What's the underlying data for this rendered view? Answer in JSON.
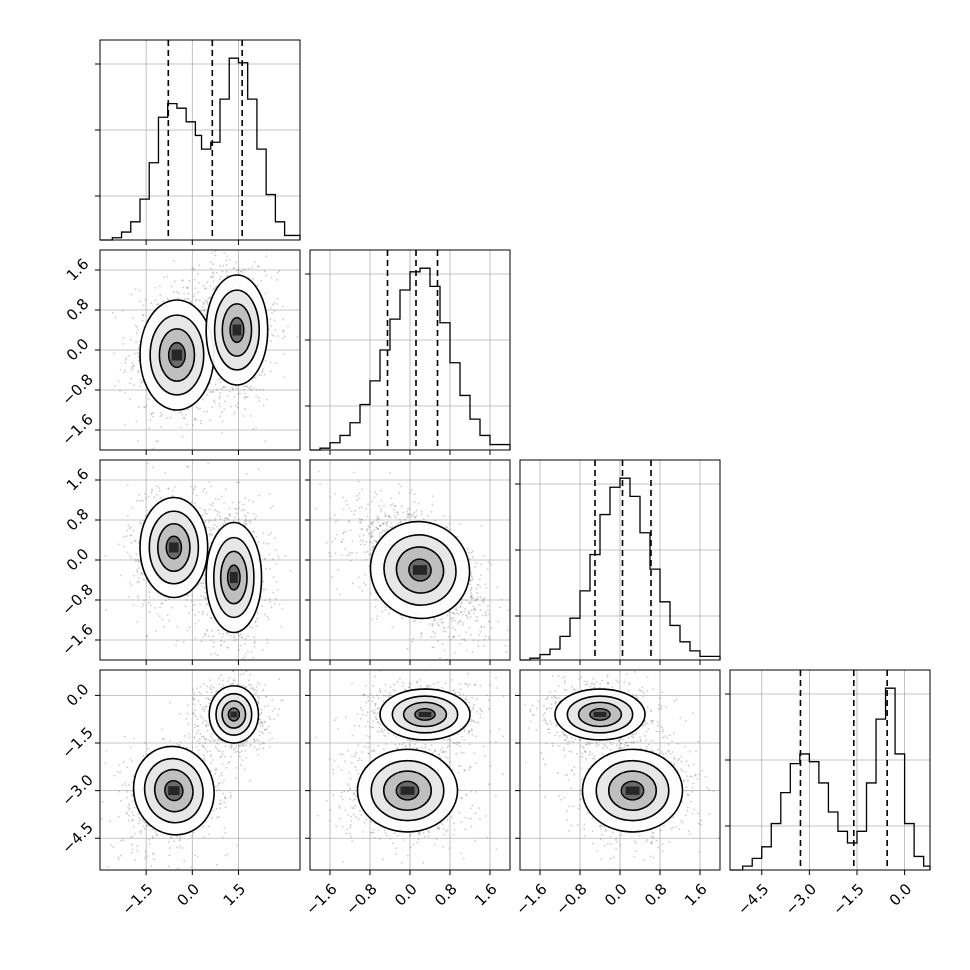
{
  "chart_data": {
    "type": "corner",
    "title": "",
    "grid": true,
    "axis_label_rotation_deg": 45,
    "colors": {
      "background": "#ffffff",
      "histogram": "#000000",
      "grid": "#b0b0b0",
      "scatter": "#6e6e6e",
      "contour": "#000000",
      "density_dark": "#262626"
    },
    "variables": [
      {
        "index": 0,
        "range": [
          -3.0,
          3.5
        ],
        "tick_labels": [
          "−1.5",
          "0.0",
          "1.5"
        ],
        "tick_values": [
          -1.5,
          0.0,
          1.5
        ],
        "quantiles": [
          -0.78,
          0.65,
          1.62
        ],
        "histogram": [
          {
            "x": -3.0,
            "y": 0.0
          },
          {
            "x": -2.6,
            "y": 0.01
          },
          {
            "x": -2.3,
            "y": 0.035
          },
          {
            "x": -2.0,
            "y": 0.08
          },
          {
            "x": -1.7,
            "y": 0.18
          },
          {
            "x": -1.4,
            "y": 0.34
          },
          {
            "x": -1.1,
            "y": 0.54
          },
          {
            "x": -0.8,
            "y": 0.6
          },
          {
            "x": -0.5,
            "y": 0.58
          },
          {
            "x": -0.2,
            "y": 0.52
          },
          {
            "x": 0.1,
            "y": 0.46
          },
          {
            "x": 0.3,
            "y": 0.4
          },
          {
            "x": 0.6,
            "y": 0.43
          },
          {
            "x": 0.9,
            "y": 0.62
          },
          {
            "x": 1.2,
            "y": 0.8
          },
          {
            "x": 1.5,
            "y": 0.78
          },
          {
            "x": 1.8,
            "y": 0.62
          },
          {
            "x": 2.1,
            "y": 0.4
          },
          {
            "x": 2.4,
            "y": 0.2
          },
          {
            "x": 2.7,
            "y": 0.08
          },
          {
            "x": 3.0,
            "y": 0.02
          },
          {
            "x": 3.5,
            "y": 0.0
          }
        ]
      },
      {
        "index": 1,
        "range": [
          -2.0,
          2.0
        ],
        "tick_labels": [
          "−1.6",
          "−0.8",
          "0.0",
          "0.8",
          "1.6"
        ],
        "tick_values": [
          -1.6,
          -0.8,
          0.0,
          0.8,
          1.6
        ],
        "quantiles": [
          -0.45,
          0.12,
          0.55
        ],
        "histogram": [
          {
            "x": -2.0,
            "y": 0.0
          },
          {
            "x": -1.8,
            "y": 0.01
          },
          {
            "x": -1.6,
            "y": 0.04
          },
          {
            "x": -1.4,
            "y": 0.08
          },
          {
            "x": -1.2,
            "y": 0.15
          },
          {
            "x": -1.0,
            "y": 0.25
          },
          {
            "x": -0.8,
            "y": 0.38
          },
          {
            "x": -0.6,
            "y": 0.55
          },
          {
            "x": -0.4,
            "y": 0.72
          },
          {
            "x": -0.2,
            "y": 0.88
          },
          {
            "x": 0.0,
            "y": 0.98
          },
          {
            "x": 0.2,
            "y": 1.0
          },
          {
            "x": 0.4,
            "y": 0.9
          },
          {
            "x": 0.6,
            "y": 0.7
          },
          {
            "x": 0.8,
            "y": 0.48
          },
          {
            "x": 1.0,
            "y": 0.3
          },
          {
            "x": 1.2,
            "y": 0.17
          },
          {
            "x": 1.4,
            "y": 0.08
          },
          {
            "x": 1.6,
            "y": 0.03
          },
          {
            "x": 2.0,
            "y": 0.0
          }
        ]
      },
      {
        "index": 2,
        "range": [
          -2.0,
          2.0
        ],
        "tick_labels": [
          "−1.6",
          "−0.8",
          "0.0",
          "0.8",
          "1.6"
        ],
        "tick_values": [
          -1.6,
          -0.8,
          0.0,
          0.8,
          1.6
        ],
        "quantiles": [
          -0.5,
          0.05,
          0.62
        ],
        "histogram": [
          {
            "x": -2.0,
            "y": 0.0
          },
          {
            "x": -1.8,
            "y": 0.01
          },
          {
            "x": -1.6,
            "y": 0.03
          },
          {
            "x": -1.4,
            "y": 0.06
          },
          {
            "x": -1.2,
            "y": 0.13
          },
          {
            "x": -1.0,
            "y": 0.23
          },
          {
            "x": -0.8,
            "y": 0.38
          },
          {
            "x": -0.6,
            "y": 0.58
          },
          {
            "x": -0.4,
            "y": 0.8
          },
          {
            "x": -0.2,
            "y": 0.95
          },
          {
            "x": 0.0,
            "y": 1.0
          },
          {
            "x": 0.2,
            "y": 0.9
          },
          {
            "x": 0.4,
            "y": 0.7
          },
          {
            "x": 0.6,
            "y": 0.5
          },
          {
            "x": 0.8,
            "y": 0.32
          },
          {
            "x": 1.0,
            "y": 0.19
          },
          {
            "x": 1.2,
            "y": 0.1
          },
          {
            "x": 1.4,
            "y": 0.05
          },
          {
            "x": 1.6,
            "y": 0.02
          },
          {
            "x": 2.0,
            "y": 0.0
          }
        ]
      },
      {
        "index": 3,
        "range": [
          -5.5,
          0.8
        ],
        "tick_labels": [
          "−4.5",
          "−3.0",
          "−1.5",
          "0.0"
        ],
        "tick_values": [
          -4.5,
          -3.0,
          -1.5,
          0.0
        ],
        "quantiles": [
          -3.28,
          -1.6,
          -0.55
        ],
        "histogram": [
          {
            "x": -5.5,
            "y": 0.0
          },
          {
            "x": -5.1,
            "y": 0.02
          },
          {
            "x": -4.8,
            "y": 0.06
          },
          {
            "x": -4.5,
            "y": 0.12
          },
          {
            "x": -4.2,
            "y": 0.24
          },
          {
            "x": -3.9,
            "y": 0.4
          },
          {
            "x": -3.6,
            "y": 0.55
          },
          {
            "x": -3.3,
            "y": 0.6
          },
          {
            "x": -3.0,
            "y": 0.56
          },
          {
            "x": -2.7,
            "y": 0.45
          },
          {
            "x": -2.4,
            "y": 0.3
          },
          {
            "x": -2.1,
            "y": 0.2
          },
          {
            "x": -1.8,
            "y": 0.14
          },
          {
            "x": -1.5,
            "y": 0.2
          },
          {
            "x": -1.2,
            "y": 0.45
          },
          {
            "x": -0.9,
            "y": 0.78
          },
          {
            "x": -0.6,
            "y": 0.94
          },
          {
            "x": -0.3,
            "y": 0.6
          },
          {
            "x": 0.0,
            "y": 0.24
          },
          {
            "x": 0.3,
            "y": 0.07
          },
          {
            "x": 0.6,
            "y": 0.02
          },
          {
            "x": 0.8,
            "y": 0.0
          }
        ]
      }
    ],
    "pairs": [
      {
        "x_var": 0,
        "y_var": 1,
        "modes": [
          {
            "x": -0.5,
            "y": -0.1,
            "sx": 0.6,
            "sy": 0.55,
            "rho": 0.0,
            "weight": 0.45
          },
          {
            "x": 1.45,
            "y": 0.4,
            "sx": 0.5,
            "sy": 0.55,
            "rho": 0.0,
            "weight": 0.55
          }
        ]
      },
      {
        "x_var": 0,
        "y_var": 2,
        "modes": [
          {
            "x": -0.6,
            "y": 0.25,
            "sx": 0.55,
            "sy": 0.5,
            "rho": 0.0,
            "weight": 0.45
          },
          {
            "x": 1.35,
            "y": -0.35,
            "sx": 0.45,
            "sy": 0.55,
            "rho": 0.0,
            "weight": 0.55
          }
        ]
      },
      {
        "x_var": 1,
        "y_var": 2,
        "modes": [
          {
            "x": 0.2,
            "y": -0.2,
            "sx": 0.5,
            "sy": 0.48,
            "rho": -0.55,
            "weight": 1.0
          }
        ]
      },
      {
        "x_var": 0,
        "y_var": 3,
        "modes": [
          {
            "x": -0.6,
            "y": -3.0,
            "sx": 0.65,
            "sy": 0.7,
            "rho": 0.25,
            "weight": 0.5
          },
          {
            "x": 1.35,
            "y": -0.6,
            "sx": 0.4,
            "sy": 0.45,
            "rho": 0.0,
            "weight": 0.5
          }
        ]
      },
      {
        "x_var": 1,
        "y_var": 3,
        "modes": [
          {
            "x": 0.3,
            "y": -0.6,
            "sx": 0.45,
            "sy": 0.4,
            "rho": 0.0,
            "weight": 0.5
          },
          {
            "x": -0.05,
            "y": -3.0,
            "sx": 0.5,
            "sy": 0.65,
            "rho": 0.0,
            "weight": 0.5
          }
        ]
      },
      {
        "x_var": 2,
        "y_var": 3,
        "modes": [
          {
            "x": -0.4,
            "y": -0.6,
            "sx": 0.45,
            "sy": 0.4,
            "rho": 0.0,
            "weight": 0.5
          },
          {
            "x": 0.25,
            "y": -3.0,
            "sx": 0.5,
            "sy": 0.65,
            "rho": 0.0,
            "weight": 0.5
          }
        ]
      }
    ]
  }
}
